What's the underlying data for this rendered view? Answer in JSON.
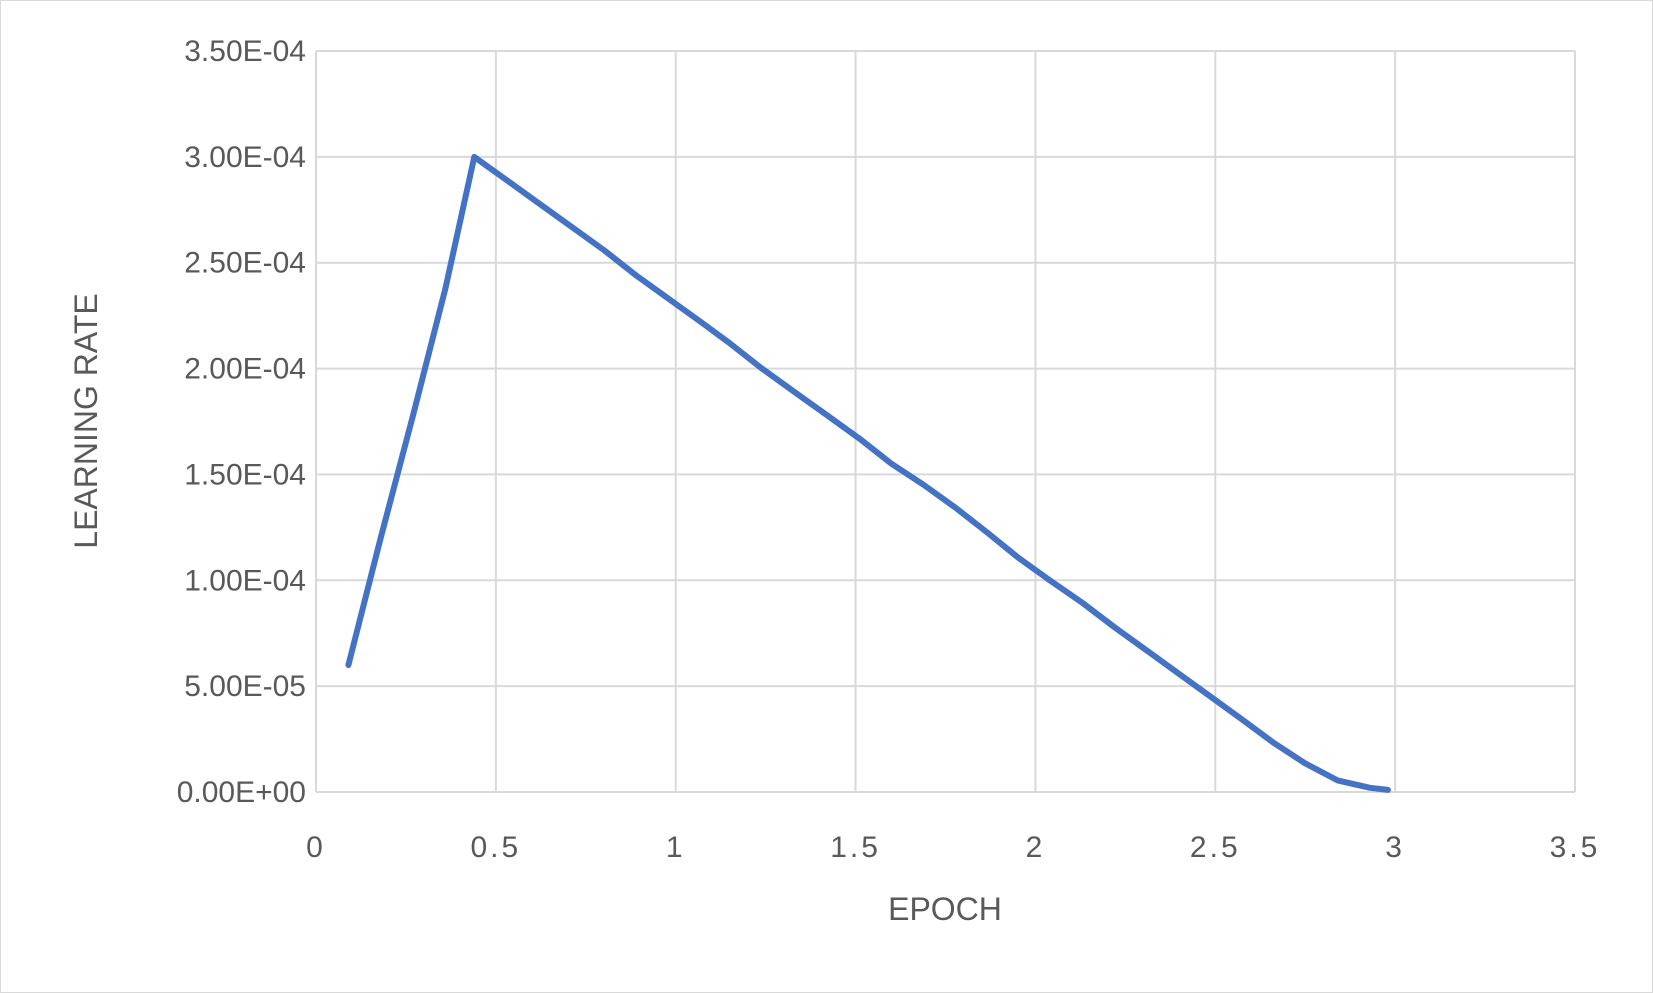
{
  "chart_data": {
    "type": "line",
    "title": "",
    "xlabel": "EPOCH",
    "ylabel": "LEARNING RATE",
    "xlim": [
      0,
      3.5
    ],
    "ylim": [
      0,
      0.00035
    ],
    "x_ticks": [
      {
        "value": 0,
        "label": "0"
      },
      {
        "value": 0.5,
        "label": "0.5"
      },
      {
        "value": 1,
        "label": "1"
      },
      {
        "value": 1.5,
        "label": "1.5"
      },
      {
        "value": 2,
        "label": "2"
      },
      {
        "value": 2.5,
        "label": "2.5"
      },
      {
        "value": 3,
        "label": "3"
      },
      {
        "value": 3.5,
        "label": "3.5"
      }
    ],
    "y_ticks": [
      {
        "value": 0,
        "label": "0.00E+00"
      },
      {
        "value": 5e-05,
        "label": "5.00E-05"
      },
      {
        "value": 0.0001,
        "label": "1.00E-04"
      },
      {
        "value": 0.00015,
        "label": "1.50E-04"
      },
      {
        "value": 0.0002,
        "label": "2.00E-04"
      },
      {
        "value": 0.00025,
        "label": "2.50E-04"
      },
      {
        "value": 0.0003,
        "label": "3.00E-04"
      },
      {
        "value": 0.00035,
        "label": "3.50E-04"
      }
    ],
    "grid": true,
    "legend": "none",
    "series": [
      {
        "color": "#4472C4",
        "x": [
          0.09,
          0.18,
          0.27,
          0.36,
          0.44,
          0.53,
          0.62,
          0.71,
          0.8,
          0.89,
          0.98,
          1.07,
          1.15,
          1.24,
          1.33,
          1.42,
          1.51,
          1.6,
          1.69,
          1.78,
          1.87,
          1.95,
          2.04,
          2.13,
          2.22,
          2.31,
          2.4,
          2.49,
          2.58,
          2.66,
          2.75,
          2.84,
          2.93,
          2.98
        ],
        "y": [
          6e-05,
          0.00012,
          0.000178,
          0.000238,
          0.0003,
          0.000289,
          0.000278,
          0.000267,
          0.000256,
          0.000244,
          0.000233,
          0.000222,
          0.000212,
          0.0002,
          0.000189,
          0.000178,
          0.000167,
          0.000155,
          0.000145,
          0.000134,
          0.000122,
          0.000111,
          0.0001,
          8.94e-05,
          7.78e-05,
          6.68e-05,
          5.57e-05,
          4.47e-05,
          3.36e-05,
          2.35e-05,
          1.35e-05,
          5.5e-06,
          2e-06,
          1e-06
        ]
      }
    ]
  }
}
